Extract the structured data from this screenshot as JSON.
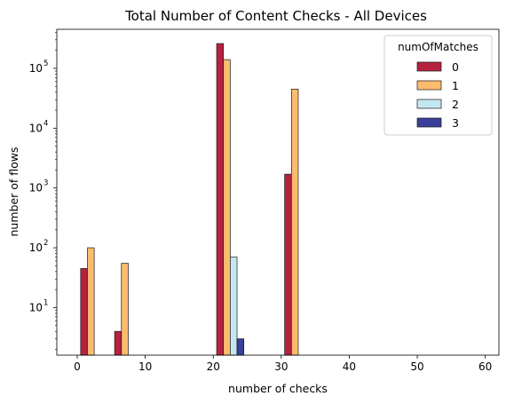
{
  "chart_data": {
    "type": "bar",
    "title": "Total Number of Content Checks - All Devices",
    "xlabel": "number of checks",
    "ylabel": "number of flows",
    "y_scale": "log",
    "xlim": [
      -3,
      62
    ],
    "ylim": [
      1.6,
      450000
    ],
    "x_ticks": [
      0,
      10,
      20,
      30,
      40,
      50,
      60
    ],
    "y_ticks": [
      {
        "value": 10,
        "base": "10",
        "exp": "1"
      },
      {
        "value": 100,
        "base": "10",
        "exp": "2"
      },
      {
        "value": 1000,
        "base": "10",
        "exp": "3"
      },
      {
        "value": 10000,
        "base": "10",
        "exp": "4"
      },
      {
        "value": 100000,
        "base": "10",
        "exp": "5"
      }
    ],
    "bin_width": 1,
    "legend": {
      "title": "numOfMatches",
      "position": "top-right"
    },
    "series": [
      {
        "name": "0",
        "color": "#b5223f",
        "points": [
          {
            "x": 1,
            "y": 45
          },
          {
            "x": 6,
            "y": 4
          },
          {
            "x": 21,
            "y": 260000
          },
          {
            "x": 31,
            "y": 1700
          }
        ]
      },
      {
        "name": "1",
        "color": "#fdbb6e",
        "points": [
          {
            "x": 2,
            "y": 100
          },
          {
            "x": 7,
            "y": 55
          },
          {
            "x": 22,
            "y": 140000
          },
          {
            "x": 32,
            "y": 45000
          }
        ]
      },
      {
        "name": "2",
        "color": "#c4e6f0",
        "points": [
          {
            "x": 23,
            "y": 70
          }
        ]
      },
      {
        "name": "3",
        "color": "#3b3f99",
        "points": [
          {
            "x": 24,
            "y": 3
          }
        ]
      }
    ]
  }
}
